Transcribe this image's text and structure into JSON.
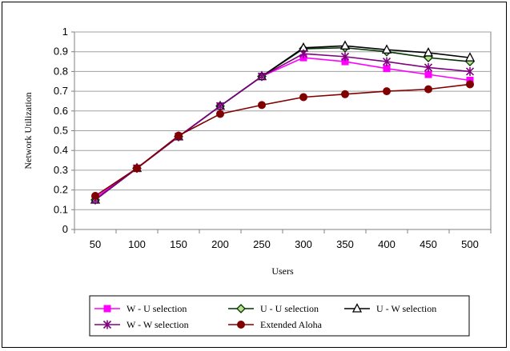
{
  "chart_data": {
    "type": "line",
    "title": "",
    "xlabel": "Users",
    "ylabel": "Network Utilization",
    "x": [
      50,
      100,
      150,
      200,
      250,
      300,
      350,
      400,
      450,
      500
    ],
    "ylim": [
      0,
      1
    ],
    "yticks": [
      "0",
      "0.1",
      "0.2",
      "0.3",
      "0.4",
      "0.5",
      "0.6",
      "0.7",
      "0.8",
      "0.9",
      "1"
    ],
    "grid": "horizontal",
    "legend_position": "bottom",
    "series": [
      {
        "name": "W - U selection",
        "color": "#ff00ff",
        "marker": "square",
        "values": [
          0.16,
          0.31,
          0.47,
          0.625,
          0.775,
          0.87,
          0.85,
          0.815,
          0.785,
          0.755
        ]
      },
      {
        "name": "U - U selection",
        "color": "#003300",
        "marker": "diamond",
        "values": [
          0.15,
          0.31,
          0.47,
          0.625,
          0.775,
          0.915,
          0.92,
          0.9,
          0.87,
          0.85
        ]
      },
      {
        "name": "U - W selection",
        "color": "#000000",
        "marker": "triangle",
        "values": [
          0.15,
          0.31,
          0.47,
          0.625,
          0.775,
          0.92,
          0.93,
          0.91,
          0.895,
          0.87
        ]
      },
      {
        "name": "W - W selection",
        "color": "#800080",
        "marker": "asterisk",
        "values": [
          0.15,
          0.31,
          0.47,
          0.625,
          0.775,
          0.89,
          0.875,
          0.85,
          0.82,
          0.8
        ]
      },
      {
        "name": "Extended Aloha",
        "color": "#800000",
        "marker": "circle",
        "values": [
          0.17,
          0.31,
          0.475,
          0.585,
          0.63,
          0.67,
          0.685,
          0.7,
          0.71,
          0.735
        ]
      }
    ]
  }
}
